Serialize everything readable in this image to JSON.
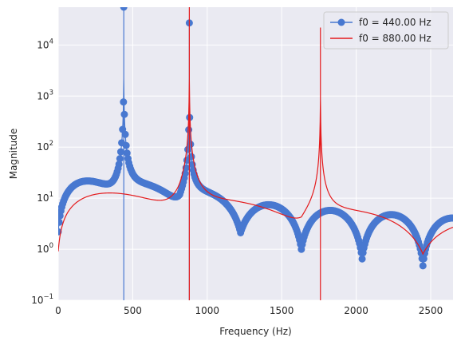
{
  "chart_data": {
    "type": "line",
    "xlabel": "Frequency (Hz)",
    "ylabel": "Magnitude",
    "xlim": [
      0,
      2650
    ],
    "ylim": [
      0.1,
      55000
    ],
    "yscale": "log",
    "grid": true,
    "legend_position": "top-right",
    "x_ticks": [
      0,
      500,
      1000,
      1500,
      2000,
      2500
    ],
    "x_tick_labels": [
      "0",
      "500",
      "1000",
      "1500",
      "2000",
      "2500"
    ],
    "y_ticks": [
      0.1,
      1,
      10,
      100,
      1000,
      10000
    ],
    "y_tick_labels": [
      {
        "base": "10",
        "exp": "−1"
      },
      {
        "base": "10",
        "exp": "0"
      },
      {
        "base": "10",
        "exp": "1"
      },
      {
        "base": "10",
        "exp": "2"
      },
      {
        "base": "10",
        "exp": "3"
      },
      {
        "base": "10",
        "exp": "4"
      }
    ],
    "series": [
      {
        "name": "f0 = 440.00 Hz",
        "color": "#4878d0",
        "marker": "o",
        "peaks": [
          {
            "f": 440,
            "mag": 55000
          },
          {
            "f": 880,
            "mag": 27000
          }
        ],
        "notch_spacing": 408,
        "envelope_max": 25
      },
      {
        "name": "f0 = 880.00 Hz",
        "color": "#e41a1c",
        "marker": "none",
        "peaks": [
          {
            "f": 880,
            "mag": 55000
          },
          {
            "f": 1760,
            "mag": 22000
          }
        ],
        "notch_spacing": 816,
        "envelope_max": 20
      }
    ]
  },
  "colors": {
    "plot_background": "#eaeaf2",
    "grid": "#ffffff",
    "text": "#262626"
  }
}
